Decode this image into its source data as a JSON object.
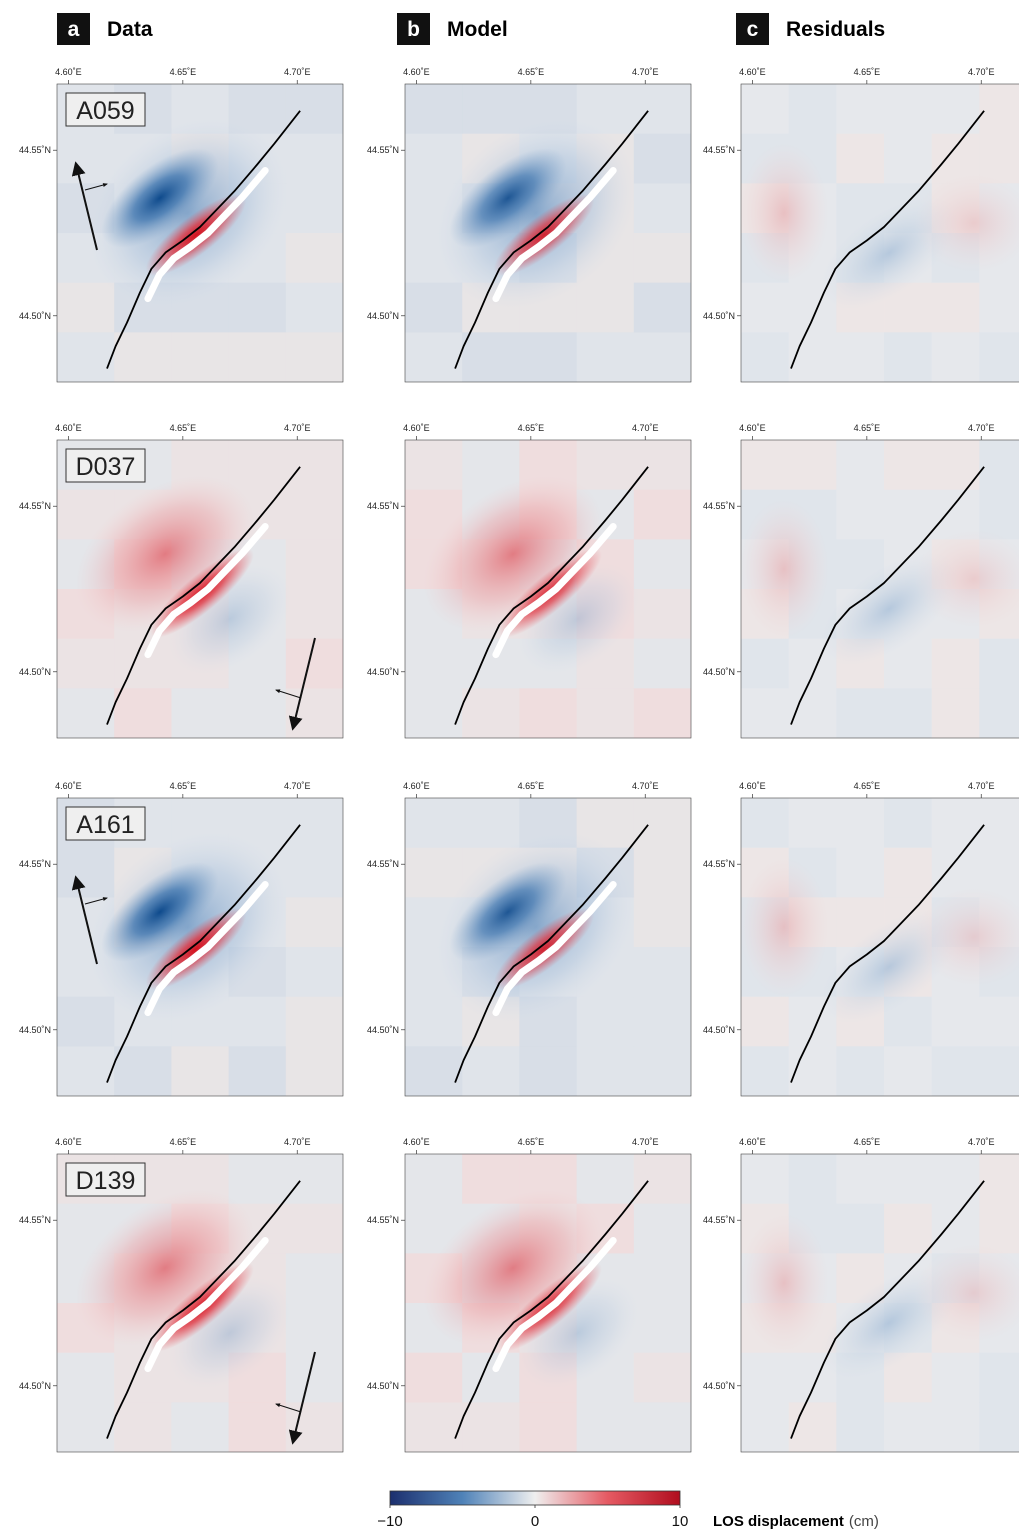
{
  "columns": [
    {
      "letter": "a",
      "title": "Data"
    },
    {
      "letter": "b",
      "title": "Model"
    },
    {
      "letter": "c",
      "title": "Residuals"
    }
  ],
  "rows": [
    {
      "track": "A059",
      "sign": -1,
      "arrow": "ascending"
    },
    {
      "track": "D037",
      "sign": 1,
      "arrow": "descending"
    },
    {
      "track": "A161",
      "sign": -1,
      "arrow": "ascending"
    },
    {
      "track": "D139",
      "sign": 1,
      "arrow": "descending"
    }
  ],
  "axes": {
    "lon_ticks": [
      "4.60˚E",
      "4.65˚E",
      "4.70˚E"
    ],
    "lat_ticks": [
      "44.55˚N",
      "44.50˚N"
    ],
    "lon_range": [
      4.595,
      4.72
    ],
    "lat_range": [
      44.48,
      44.57
    ]
  },
  "colorbar": {
    "min_label": "−10",
    "mid_label": "0",
    "max_label": "10",
    "title_bold": "LOS displacement",
    "title_unit": "(cm)",
    "range": [
      -10,
      10
    ],
    "colors": {
      "negative": "#1a3a7a",
      "zero": "#eeeeee",
      "positive": "#b00d1e"
    }
  },
  "fault_color": "#000000"
}
